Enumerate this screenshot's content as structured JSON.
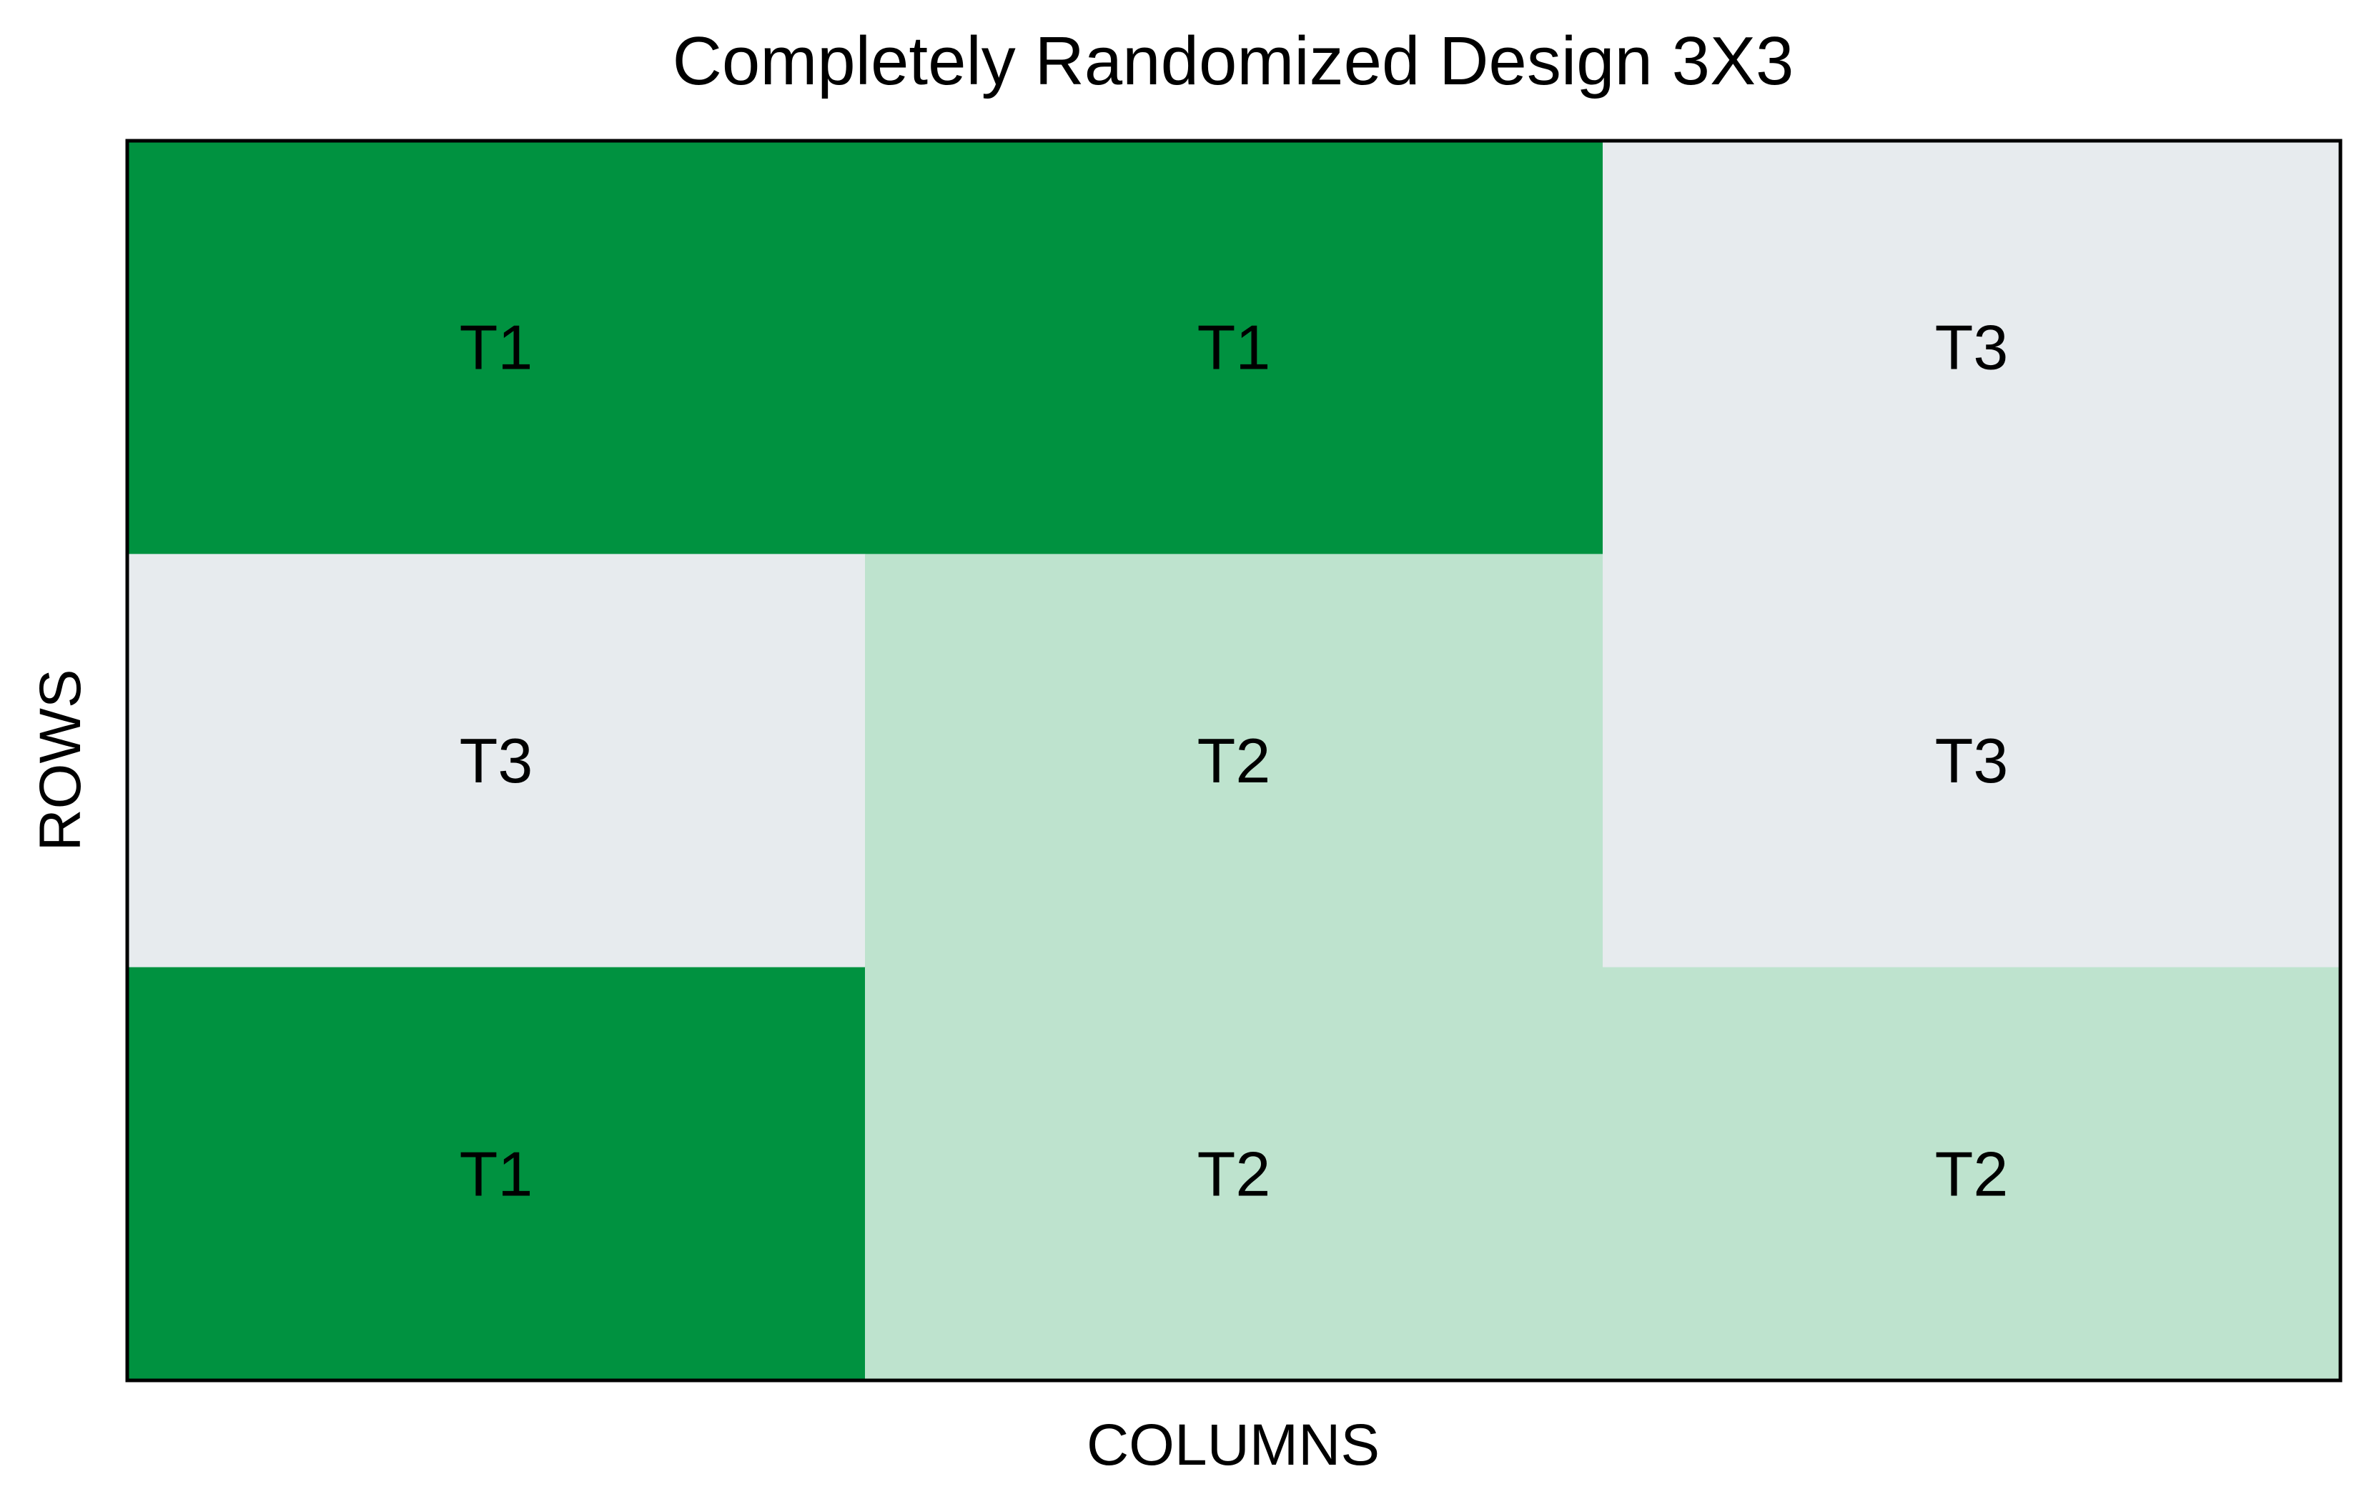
{
  "chart_data": {
    "type": "heatmap",
    "title": "Completely Randomized Design 3X3",
    "xlabel": "COLUMNS",
    "ylabel": "ROWS",
    "n_rows": 3,
    "n_cols": 3,
    "cells": [
      [
        "T1",
        "T1",
        "T3"
      ],
      [
        "T3",
        "T2",
        "T3"
      ],
      [
        "T1",
        "T2",
        "T2"
      ]
    ],
    "treatment_colors": {
      "T1": "#009240",
      "T2": "#BEE3CE",
      "T3": "#E7EBEE"
    },
    "grid": false,
    "legend": "none"
  }
}
